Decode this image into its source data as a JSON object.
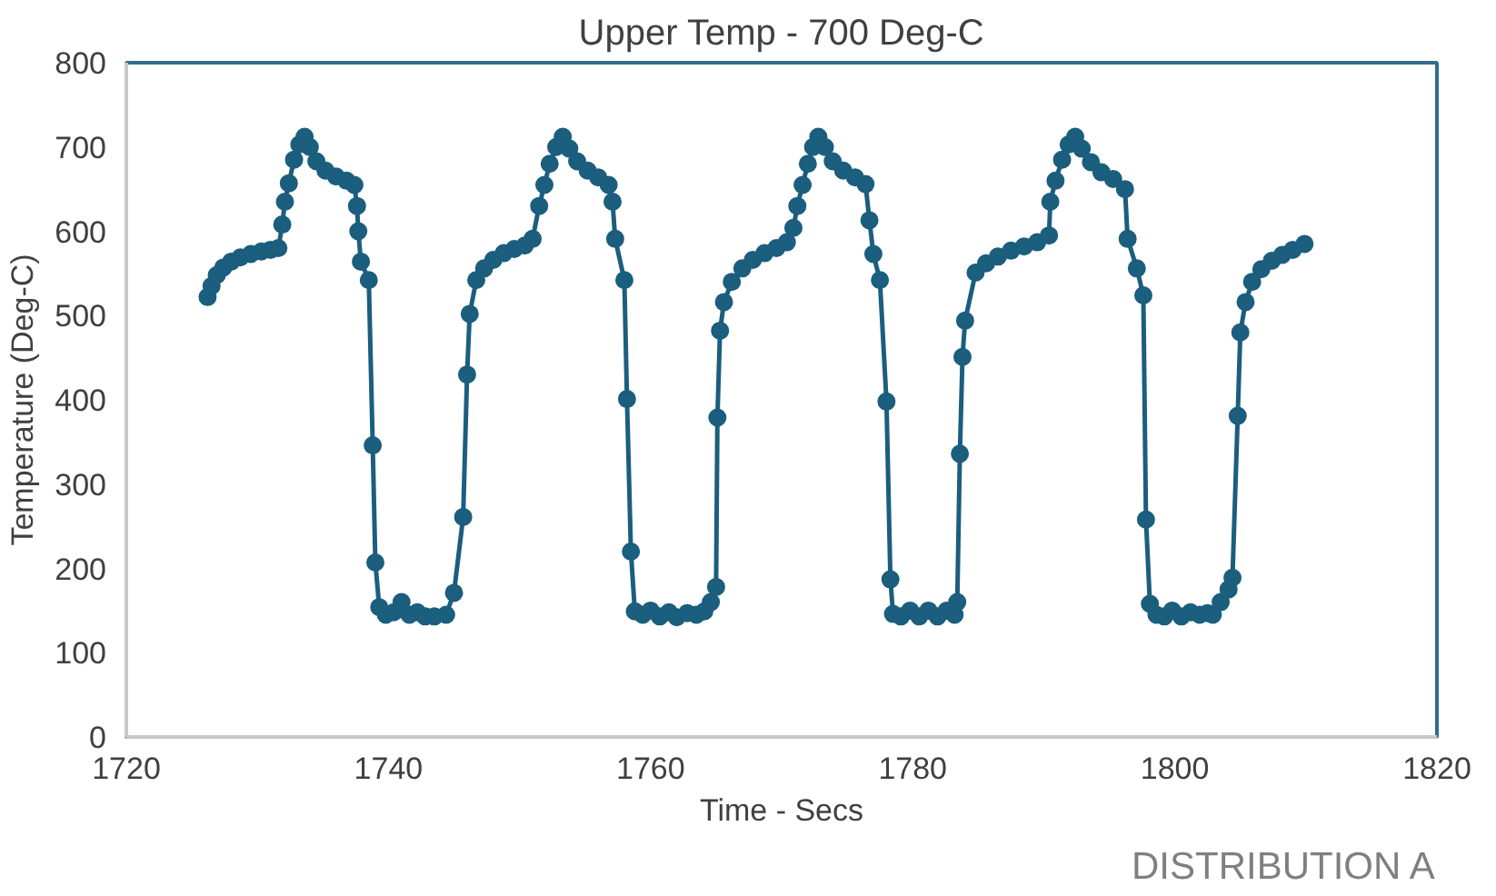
{
  "chart_data": {
    "type": "line",
    "title": "Upper Temp - 700 Deg-C",
    "xlabel": "Time - Secs",
    "ylabel": "Temperature (Deg-C)",
    "annotations": [
      "DISTRIBUTION A"
    ],
    "xlim": [
      1720,
      1820
    ],
    "xticks": [
      1720,
      1740,
      1760,
      1780,
      1800,
      1820
    ],
    "ylim": [
      0,
      800
    ],
    "yticks": [
      0,
      100,
      200,
      300,
      400,
      500,
      600,
      700,
      800
    ],
    "grid": false,
    "marker": "circle",
    "line_style": "solid",
    "series": [
      {
        "color": "#1b5e7e",
        "x": [
          1726.2,
          1726.5,
          1726.9,
          1727.4,
          1728,
          1728.7,
          1729.5,
          1730.3,
          1731,
          1731.6,
          1731.9,
          1732.1,
          1732.4,
          1732.8,
          1733.2,
          1733.6,
          1734,
          1734.5,
          1735.2,
          1736,
          1736.8,
          1737.4,
          1737.6,
          1737.7,
          1737.9,
          1738.5,
          1738.8,
          1739,
          1739.3,
          1739.8,
          1740.4,
          1741,
          1741.6,
          1742.2,
          1742.8,
          1743.5,
          1744.4,
          1745,
          1745.7,
          1746,
          1746.2,
          1746.7,
          1747.3,
          1748,
          1748.8,
          1749.6,
          1750.4,
          1751,
          1751.5,
          1751.9,
          1752.3,
          1752.8,
          1753.3,
          1753.8,
          1754.4,
          1755.2,
          1756,
          1756.8,
          1757.1,
          1757.3,
          1758,
          1758.2,
          1758.5,
          1758.8,
          1759.4,
          1760,
          1760.7,
          1761.4,
          1762,
          1762.8,
          1763.5,
          1764.1,
          1764.6,
          1765,
          1765.1,
          1765.3,
          1765.6,
          1766.2,
          1767,
          1767.8,
          1768.7,
          1769.6,
          1770.4,
          1770.9,
          1771.2,
          1771.6,
          1772,
          1772.4,
          1772.8,
          1773.3,
          1773.9,
          1774.7,
          1775.6,
          1776.4,
          1776.7,
          1777,
          1777.5,
          1778,
          1778.3,
          1778.5,
          1779.1,
          1779.8,
          1780.5,
          1781.2,
          1781.9,
          1782.6,
          1783.2,
          1783.4,
          1783.6,
          1783.8,
          1784,
          1784.8,
          1785.6,
          1786.5,
          1787.5,
          1788.5,
          1789.5,
          1790.4,
          1790.5,
          1790.9,
          1791.4,
          1791.9,
          1792.4,
          1792.9,
          1793.6,
          1794.4,
          1795.3,
          1796.2,
          1796.4,
          1797.1,
          1797.6,
          1797.8,
          1798.1,
          1798.6,
          1799.2,
          1799.8,
          1800.5,
          1801.2,
          1801.9,
          1802.5,
          1802.9,
          1803.5,
          1804.1,
          1804.4,
          1804.8,
          1805,
          1805.4,
          1805.9,
          1806.6,
          1807.4,
          1808.2,
          1809,
          1809.9
        ],
        "values": [
          522,
          535,
          548,
          557,
          564,
          569,
          573,
          576,
          578,
          580,
          608,
          635,
          657,
          685,
          703,
          712,
          700,
          683,
          672,
          665,
          660,
          655,
          630,
          600,
          564,
          542,
          346,
          207,
          154,
          145,
          148,
          160,
          145,
          148,
          143,
          143,
          145,
          171,
          261,
          430,
          502,
          542,
          556,
          566,
          574,
          579,
          583,
          591,
          630,
          655,
          680,
          700,
          712,
          698,
          683,
          672,
          664,
          655,
          635,
          591,
          542,
          401,
          220,
          149,
          145,
          150,
          143,
          148,
          142,
          147,
          145,
          149,
          160,
          178,
          379,
          482,
          516,
          540,
          556,
          566,
          574,
          580,
          587,
          604,
          630,
          655,
          680,
          700,
          712,
          700,
          683,
          672,
          664,
          656,
          613,
          573,
          542,
          398,
          187,
          146,
          143,
          150,
          143,
          150,
          143,
          150,
          145,
          160,
          336,
          451,
          494,
          551,
          562,
          570,
          577,
          582,
          587,
          595,
          635,
          660,
          685,
          703,
          712,
          698,
          682,
          670,
          662,
          650,
          591,
          556,
          524,
          258,
          158,
          145,
          143,
          150,
          143,
          148,
          145,
          147,
          145,
          160,
          175,
          189,
          381,
          480,
          516,
          540,
          555,
          565,
          572,
          578,
          585
        ]
      }
    ]
  }
}
